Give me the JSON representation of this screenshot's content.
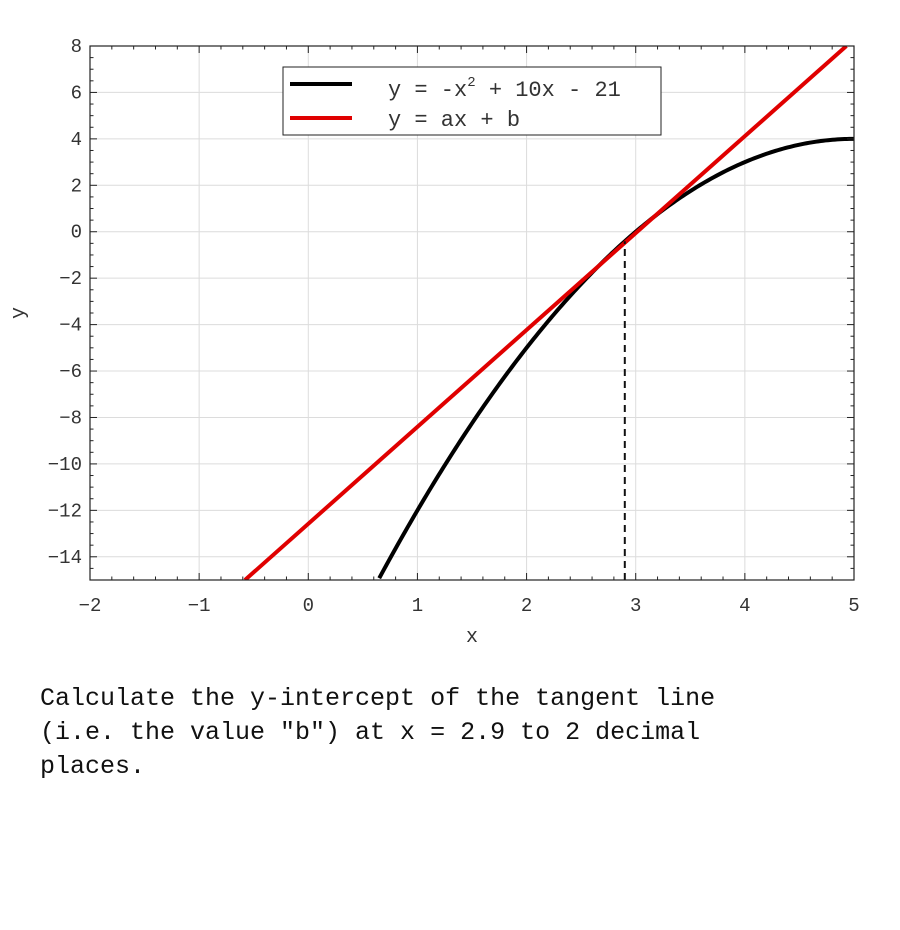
{
  "chart_data": {
    "type": "line",
    "xlabel": "x",
    "ylabel": "y",
    "xlim": [
      -2,
      5
    ],
    "ylim": [
      -15,
      8
    ],
    "xticks": [
      -2,
      -1,
      0,
      1,
      2,
      3,
      4,
      5
    ],
    "yticks": [
      -14,
      -12,
      -10,
      -8,
      -6,
      -4,
      -2,
      0,
      2,
      4,
      6,
      8
    ],
    "grid": true,
    "legend_position": "top-center",
    "series": [
      {
        "name": "y = -x^2 + 10x - 21",
        "legend_base": "y = -x",
        "legend_sup": "2",
        "legend_rest": " + 10x - 21",
        "kind": "function",
        "coefficients": {
          "a": -1,
          "b": 10,
          "c": -21
        },
        "x": [
          0.65,
          1.0,
          1.5,
          2.0,
          2.5,
          2.9,
          3.5,
          4.0,
          4.5,
          5.0
        ],
        "y": [
          -14.92,
          -12.0,
          -8.25,
          -5.0,
          -2.25,
          -0.41,
          1.75,
          3.0,
          3.75,
          4.0
        ],
        "color": "#000000"
      },
      {
        "name": "y = ax + b",
        "kind": "line",
        "x": [
          -0.58,
          4.93
        ],
        "y": [
          -15.0,
          8.0
        ],
        "color": "#e00000"
      }
    ],
    "annotations": [
      {
        "type": "vertical-dashed",
        "x": 2.9,
        "y_from": -15,
        "y_to": -0.41
      }
    ]
  },
  "question": {
    "line1": "Calculate the y-intercept of the tangent line",
    "line2": "(i.e. the value \"b\") at x = 2.9 to 2 decimal",
    "line3": "places."
  }
}
